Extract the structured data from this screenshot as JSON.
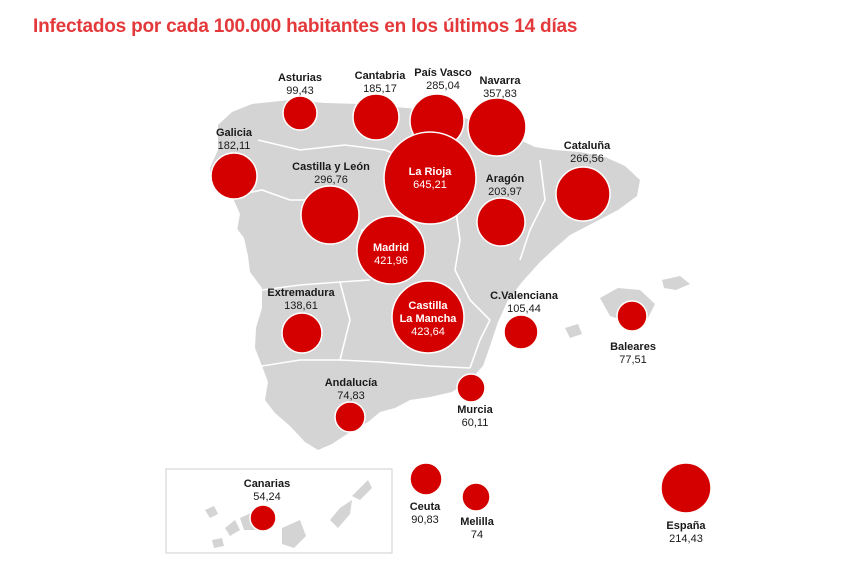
{
  "title": "Infectados por cada 100.000 habitantes en los últimos 14 días",
  "colors": {
    "title": "#e4393b",
    "bubble": "#d40000",
    "land": "#d4d4d4",
    "border": "#ffffff"
  },
  "regions": [
    {
      "id": "asturias",
      "name": "Asturias",
      "value": "99,43"
    },
    {
      "id": "cantabria",
      "name": "Cantabria",
      "value": "185,17"
    },
    {
      "id": "pais-vasco",
      "name": "País Vasco",
      "value": "285,04"
    },
    {
      "id": "navarra",
      "name": "Navarra",
      "value": "357,83"
    },
    {
      "id": "galicia",
      "name": "Galicia",
      "value": "182,11"
    },
    {
      "id": "la-rioja",
      "name": "La Rioja",
      "value": "645,21"
    },
    {
      "id": "cataluna",
      "name": "Cataluña",
      "value": "266,56"
    },
    {
      "id": "castilla-leon",
      "name": "Castilla y León",
      "value": "296,76"
    },
    {
      "id": "aragon",
      "name": "Aragón",
      "value": "203,97"
    },
    {
      "id": "madrid",
      "name": "Madrid",
      "value": "421,96"
    },
    {
      "id": "extremadura",
      "name": "Extremadura",
      "value": "138,61"
    },
    {
      "id": "castilla-la-mancha",
      "name": "Castilla\nLa Mancha",
      "value": "423,64"
    },
    {
      "id": "c-valenciana",
      "name": "C.Valenciana",
      "value": "105,44"
    },
    {
      "id": "baleares",
      "name": "Baleares",
      "value": "77,51"
    },
    {
      "id": "andalucia",
      "name": "Andalucía",
      "value": "74,83"
    },
    {
      "id": "murcia",
      "name": "Murcia",
      "value": "60,11"
    },
    {
      "id": "canarias",
      "name": "Canarias",
      "value": "54,24"
    },
    {
      "id": "ceuta",
      "name": "Ceuta",
      "value": "90,83"
    },
    {
      "id": "melilla",
      "name": "Melilla",
      "value": "74"
    },
    {
      "id": "espana",
      "name": "España",
      "value": "214,43"
    }
  ]
}
